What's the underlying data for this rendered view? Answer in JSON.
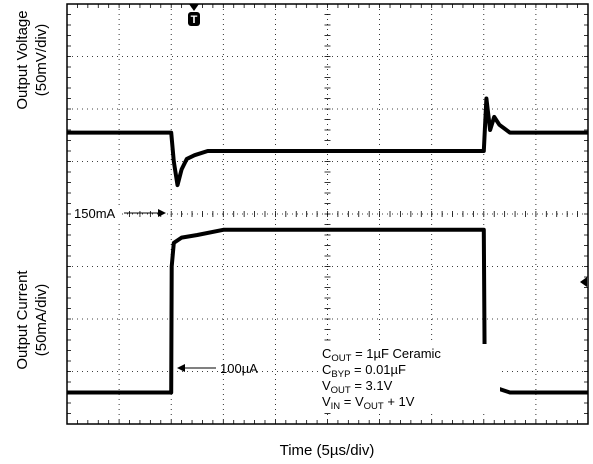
{
  "chart_data": {
    "type": "line",
    "title": "",
    "xlabel": "Time (5µs/div)",
    "ylabel_top": [
      "Output Voltage",
      "(50mV/div)"
    ],
    "ylabel_bottom": [
      "Output Current",
      "(50mA/div)"
    ],
    "grid": true,
    "x_divisions": 10,
    "y_divisions": 8,
    "xlim_div": [
      0,
      10
    ],
    "series": [
      {
        "channel": "voltage",
        "x_div": [
          0.0,
          2.0,
          2.05,
          2.12,
          2.2,
          2.3,
          2.45,
          2.7,
          6.0,
          8.0,
          8.05,
          8.12,
          8.2,
          8.3,
          8.5,
          8.8,
          10.0
        ],
        "y_div": [
          5.55,
          5.55,
          5.0,
          4.55,
          4.85,
          5.05,
          5.12,
          5.2,
          5.2,
          5.2,
          6.2,
          5.6,
          5.85,
          5.7,
          5.55,
          5.55,
          5.55
        ]
      },
      {
        "channel": "current",
        "x_div": [
          0.0,
          2.0,
          2.01,
          2.05,
          2.2,
          2.5,
          3.0,
          4.0,
          6.0,
          8.0,
          8.02,
          8.2,
          8.5,
          9.0,
          10.0
        ],
        "y_div": [
          0.6,
          0.6,
          3.0,
          3.45,
          3.55,
          3.6,
          3.7,
          3.7,
          3.7,
          3.7,
          0.75,
          0.7,
          0.6,
          0.6,
          0.6
        ]
      }
    ],
    "annotations": {
      "level_150": "150mA",
      "level_100": "100µA",
      "conditions": [
        {
          "main": "C",
          "sub": "OUT",
          "rest": " = 1µF Ceramic"
        },
        {
          "main": "C",
          "sub": "BYP",
          "rest": " = 0.01µF"
        },
        {
          "main": "V",
          "sub": "OUT",
          "rest": " = 3.1V"
        },
        {
          "main": "V",
          "sub": "IN",
          "rest": " = V",
          "sub2": "OUT",
          "rest2": " + 1V"
        }
      ],
      "trigger_marker": "T"
    }
  }
}
